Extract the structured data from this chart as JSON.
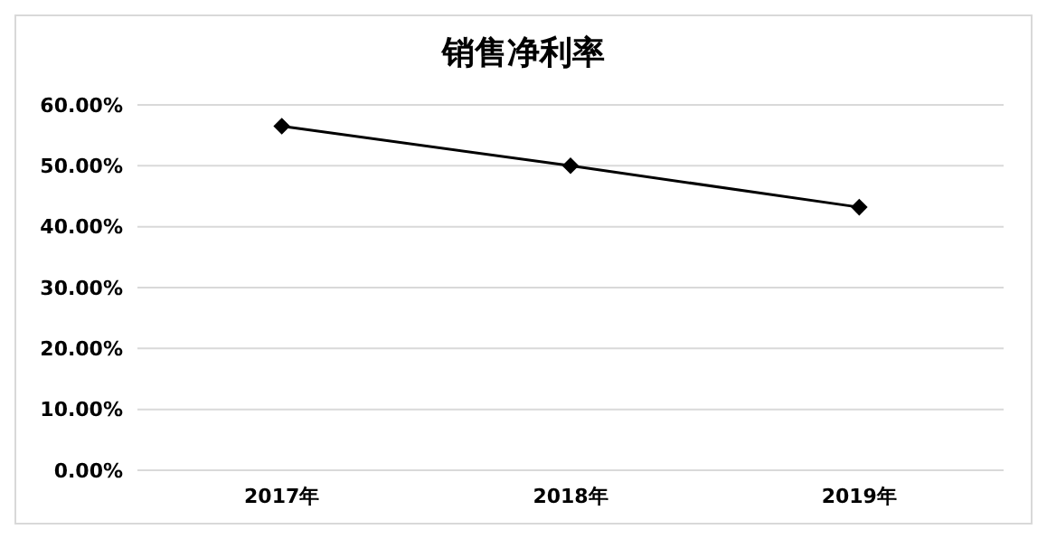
{
  "chart_data": {
    "type": "line",
    "title": "销售净利率",
    "categories": [
      "2017年",
      "2018年",
      "2019年"
    ],
    "series": [
      {
        "color": "#000000",
        "values": [
          56.5,
          50.0,
          43.2
        ]
      }
    ],
    "ylim": [
      0,
      60
    ],
    "yticks": [
      {
        "value": 0,
        "label": "0.00%"
      },
      {
        "value": 10,
        "label": "10.00%"
      },
      {
        "value": 20,
        "label": "20.00%"
      },
      {
        "value": 30,
        "label": "30.00%"
      },
      {
        "value": 40,
        "label": "40.00%"
      },
      {
        "value": 50,
        "label": "50.00%"
      },
      {
        "value": 60,
        "label": "60.00%"
      }
    ],
    "grid": "y",
    "marker": "diamond"
  }
}
